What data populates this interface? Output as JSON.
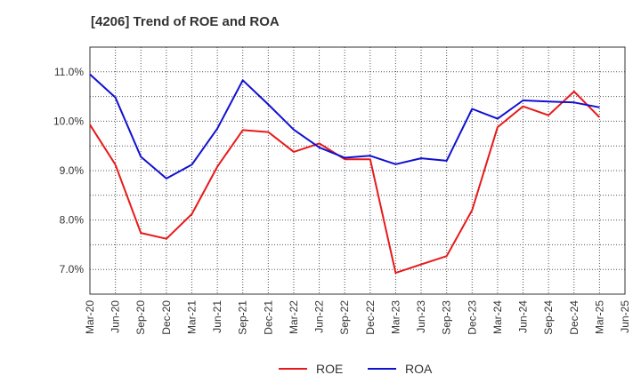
{
  "chart_data": {
    "type": "line",
    "title": "[4206]  Trend of ROE and ROA",
    "x": [
      "Mar-20",
      "Jun-20",
      "Sep-20",
      "Dec-20",
      "Mar-21",
      "Jun-21",
      "Sep-21",
      "Dec-21",
      "Mar-22",
      "Jun-22",
      "Sep-22",
      "Dec-22",
      "Mar-23",
      "Jun-23",
      "Sep-23",
      "Dec-23",
      "Mar-24",
      "Jun-24",
      "Sep-24",
      "Dec-24",
      "Mar-25",
      "Jun-25"
    ],
    "y_ticks": [
      "7.0%",
      "8.0%",
      "9.0%",
      "10.0%",
      "11.0%"
    ],
    "y_tick_values": [
      7.0,
      8.0,
      9.0,
      10.0,
      11.0
    ],
    "ylim": [
      6.5,
      11.5
    ],
    "grid": true,
    "legend_position": "bottom",
    "series": [
      {
        "name": "ROE",
        "color": "#e8191a",
        "values": [
          9.93,
          9.12,
          7.74,
          7.62,
          8.12,
          9.08,
          9.82,
          9.78,
          9.38,
          9.55,
          9.23,
          9.23,
          6.93,
          7.1,
          7.27,
          8.2,
          9.88,
          10.3,
          10.12,
          10.6,
          10.08,
          null
        ]
      },
      {
        "name": "ROA",
        "color": "#1010d0",
        "values": [
          10.95,
          10.48,
          9.28,
          8.84,
          9.12,
          9.85,
          10.83,
          10.34,
          9.83,
          9.47,
          9.26,
          9.3,
          9.13,
          9.25,
          9.2,
          10.25,
          10.05,
          10.42,
          10.4,
          10.38,
          10.28,
          null
        ]
      }
    ]
  }
}
